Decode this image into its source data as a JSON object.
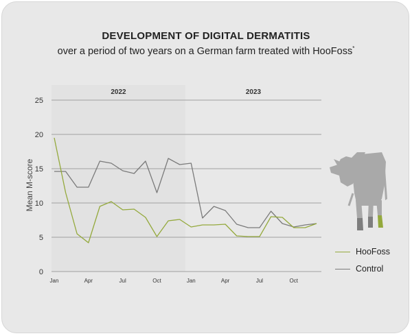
{
  "header": {
    "title": "DEVELOPMENT OF DIGITAL DERMATITIS",
    "subtitle": "over a period of two years on a German farm treated with HooFoss",
    "subtitle_mark": "*"
  },
  "chart_data": {
    "type": "line",
    "title": "DEVELOPMENT OF DIGITAL DERMATITIS",
    "subtitle": "over a period of two years on a German farm treated with HooFoss*",
    "ylabel": "Mean M-score",
    "xlabel": "",
    "ylim": [
      0,
      25
    ],
    "yticks": [
      "0",
      "5",
      "10",
      "15",
      "20",
      "25"
    ],
    "grid": true,
    "legend_position": "bottom-right",
    "year_labels": [
      "2022",
      "2023"
    ],
    "x": [
      1,
      2,
      3,
      4,
      5,
      6,
      7,
      8,
      9,
      10,
      11,
      12,
      13,
      14,
      15,
      16,
      17,
      18,
      19,
      20,
      21,
      22,
      23,
      24
    ],
    "x_ticks": [
      {
        "x": 1,
        "label": "Jan"
      },
      {
        "x": 4,
        "label": "Apr"
      },
      {
        "x": 7,
        "label": "Jul"
      },
      {
        "x": 10,
        "label": "Oct"
      },
      {
        "x": 13,
        "label": "Jan"
      },
      {
        "x": 16,
        "label": "Apr"
      },
      {
        "x": 19,
        "label": "Jul"
      },
      {
        "x": 22,
        "label": "Oct"
      }
    ],
    "series": [
      {
        "name": "HooFoss",
        "color": "#94a93c",
        "values": [
          19.5,
          11.5,
          5.5,
          4.2,
          9.5,
          10.2,
          9.0,
          9.1,
          7.9,
          5.1,
          7.4,
          7.6,
          6.5,
          6.8,
          6.8,
          6.9,
          5.2,
          5.1,
          5.1,
          8.0,
          7.9,
          6.4,
          6.4,
          7.0
        ]
      },
      {
        "name": "Control",
        "color": "#7a7a7a",
        "values": [
          14.6,
          14.6,
          12.3,
          12.3,
          16.1,
          15.8,
          14.7,
          14.3,
          16.1,
          11.5,
          16.5,
          15.6,
          15.8,
          7.8,
          9.5,
          8.9,
          6.9,
          6.4,
          6.4,
          8.8,
          7.0,
          6.5,
          6.8,
          7.0
        ]
      }
    ]
  },
  "colors": {
    "background": "#e8e8e8",
    "highlight_band": "#e2e2e2",
    "grid": "#8a8a8a",
    "cow": "#a9a9a9",
    "hoof_treated": "#94a93c"
  },
  "icons": {
    "cow": "cow-silhouette-icon"
  }
}
